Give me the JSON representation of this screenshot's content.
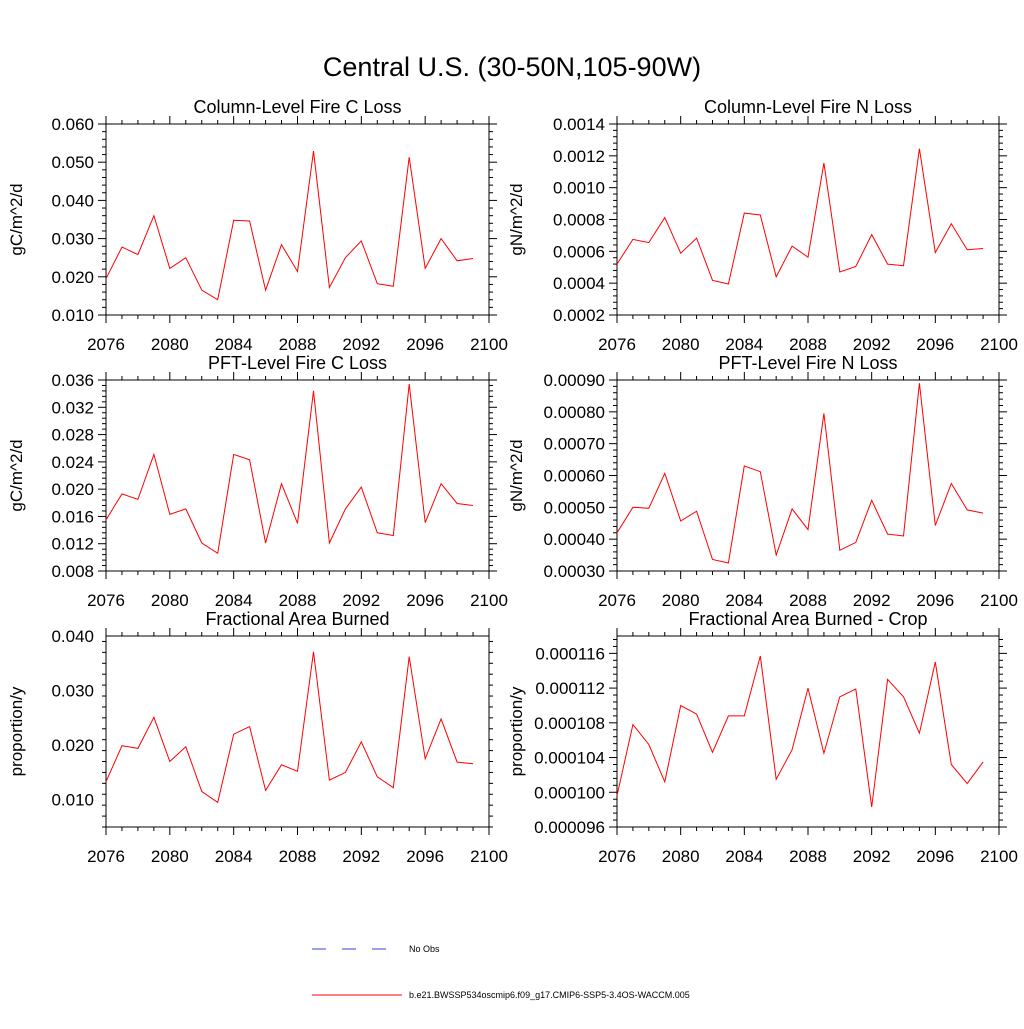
{
  "title": "Central U.S. (30-50N,105-90W)",
  "colors": {
    "model_line": "#ff0000",
    "obs_line": "#3344cc",
    "axis": "#000000"
  },
  "legend": {
    "obs_label": "No Obs",
    "model_label": "b.e21.BWSSP534oscmip6.f09_g17.CMIP6-SSP5-3.4OS-WACCM.005"
  },
  "chart_data": [
    {
      "type": "line",
      "title": "Column-Level Fire C Loss",
      "ylabel": "gC/m^2/d",
      "xlim": [
        2076,
        2100
      ],
      "ylim": [
        0.01,
        0.06
      ],
      "x_ticks": [
        "2076",
        "2080",
        "2084",
        "2088",
        "2092",
        "2096",
        "2100"
      ],
      "y_ticks": [
        "0.010",
        "0.020",
        "0.030",
        "0.040",
        "0.050",
        "0.060"
      ],
      "series": [
        {
          "name": "b.e21.BWSSP534oscmip6.f09_g17.CMIP6-SSP5-3.4OS-WACCM.005",
          "x": [
            2076,
            2077,
            2078,
            2079,
            2080,
            2081,
            2082,
            2083,
            2084,
            2085,
            2086,
            2087,
            2088,
            2089,
            2090,
            2091,
            2092,
            2093,
            2094,
            2095,
            2096,
            2097,
            2098,
            2099
          ],
          "y": [
            0.0195,
            0.0278,
            0.0258,
            0.036,
            0.0222,
            0.025,
            0.0165,
            0.014,
            0.0348,
            0.0346,
            0.0165,
            0.0284,
            0.0214,
            0.0529,
            0.0172,
            0.025,
            0.0294,
            0.0182,
            0.0175,
            0.0513,
            0.0222,
            0.03,
            0.0242,
            0.0248
          ]
        }
      ]
    },
    {
      "type": "line",
      "title": "Column-Level Fire N Loss",
      "ylabel": "gN/m^2/d",
      "xlim": [
        2076,
        2100
      ],
      "ylim": [
        0.0002,
        0.0014
      ],
      "x_ticks": [
        "2076",
        "2080",
        "2084",
        "2088",
        "2092",
        "2096",
        "2100"
      ],
      "y_ticks": [
        "0.0002",
        "0.0004",
        "0.0006",
        "0.0008",
        "0.0010",
        "0.0012",
        "0.0014"
      ],
      "series": [
        {
          "name": "b.e21.BWSSP534oscmip6.f09_g17.CMIP6-SSP5-3.4OS-WACCM.005",
          "x": [
            2076,
            2077,
            2078,
            2079,
            2080,
            2081,
            2082,
            2083,
            2084,
            2085,
            2086,
            2087,
            2088,
            2089,
            2090,
            2091,
            2092,
            2093,
            2094,
            2095,
            2096,
            2097,
            2098,
            2099
          ],
          "y": [
            0.00052,
            0.000675,
            0.000655,
            0.000812,
            0.000588,
            0.000683,
            0.000418,
            0.000395,
            0.00084,
            0.000828,
            0.00044,
            0.000633,
            0.000563,
            0.001155,
            0.00047,
            0.000505,
            0.000705,
            0.00052,
            0.00051,
            0.001245,
            0.000592,
            0.000773,
            0.00061,
            0.000618
          ]
        }
      ]
    },
    {
      "type": "line",
      "title": "PFT-Level Fire C Loss",
      "ylabel": "gC/m^2/d",
      "xlim": [
        2076,
        2100
      ],
      "ylim": [
        0.008,
        0.036
      ],
      "x_ticks": [
        "2076",
        "2080",
        "2084",
        "2088",
        "2092",
        "2096",
        "2100"
      ],
      "y_ticks": [
        "0.008",
        "0.012",
        "0.016",
        "0.020",
        "0.024",
        "0.028",
        "0.032",
        "0.036"
      ],
      "series": [
        {
          "name": "b.e21.BWSSP534oscmip6.f09_g17.CMIP6-SSP5-3.4OS-WACCM.005",
          "x": [
            2076,
            2077,
            2078,
            2079,
            2080,
            2081,
            2082,
            2083,
            2084,
            2085,
            2086,
            2087,
            2088,
            2089,
            2090,
            2091,
            2092,
            2093,
            2094,
            2095,
            2096,
            2097,
            2098,
            2099
          ],
          "y": [
            0.0155,
            0.0193,
            0.0185,
            0.0251,
            0.0163,
            0.0171,
            0.0121,
            0.0106,
            0.0251,
            0.0243,
            0.0121,
            0.0208,
            0.015,
            0.0344,
            0.0121,
            0.0171,
            0.0203,
            0.0136,
            0.0132,
            0.0354,
            0.0151,
            0.0208,
            0.0179,
            0.0176
          ]
        }
      ]
    },
    {
      "type": "line",
      "title": "PFT-Level Fire N Loss",
      "ylabel": "gN/m^2/d",
      "xlim": [
        2076,
        2100
      ],
      "ylim": [
        0.0003,
        0.0009
      ],
      "x_ticks": [
        "2076",
        "2080",
        "2084",
        "2088",
        "2092",
        "2096",
        "2100"
      ],
      "y_ticks": [
        "0.00030",
        "0.00040",
        "0.00050",
        "0.00060",
        "0.00070",
        "0.00080",
        "0.00090"
      ],
      "series": [
        {
          "name": "b.e21.BWSSP534oscmip6.f09_g17.CMIP6-SSP5-3.4OS-WACCM.005",
          "x": [
            2076,
            2077,
            2078,
            2079,
            2080,
            2081,
            2082,
            2083,
            2084,
            2085,
            2086,
            2087,
            2088,
            2089,
            2090,
            2091,
            2092,
            2093,
            2094,
            2095,
            2096,
            2097,
            2098,
            2099
          ],
          "y": [
            0.00042,
            0.0005,
            0.000497,
            0.000607,
            0.000457,
            0.000488,
            0.000336,
            0.000325,
            0.00063,
            0.000612,
            0.00035,
            0.000495,
            0.00043,
            0.000795,
            0.000365,
            0.00039,
            0.000522,
            0.000416,
            0.00041,
            0.00089,
            0.000443,
            0.000575,
            0.000492,
            0.000482
          ]
        }
      ]
    },
    {
      "type": "line",
      "title": "Fractional Area Burned",
      "ylabel": "proportion/y",
      "xlim": [
        2076,
        2100
      ],
      "ylim": [
        0.005,
        0.04
      ],
      "x_ticks": [
        "2076",
        "2080",
        "2084",
        "2088",
        "2092",
        "2096",
        "2100"
      ],
      "y_ticks": [
        "0.010",
        "0.020",
        "0.030",
        "0.040"
      ],
      "y_tick_values": [
        0.01,
        0.02,
        0.03,
        0.04
      ],
      "series": [
        {
          "name": "b.e21.BWSSP534oscmip6.f09_g17.CMIP6-SSP5-3.4OS-WACCM.005",
          "x": [
            2076,
            2077,
            2078,
            2079,
            2080,
            2081,
            2082,
            2083,
            2084,
            2085,
            2086,
            2087,
            2088,
            2089,
            2090,
            2091,
            2092,
            2093,
            2094,
            2095,
            2096,
            2097,
            2098,
            2099
          ],
          "y": [
            0.0133,
            0.0199,
            0.0194,
            0.0251,
            0.017,
            0.0197,
            0.0115,
            0.0095,
            0.022,
            0.0234,
            0.0117,
            0.0164,
            0.0152,
            0.0371,
            0.0136,
            0.015,
            0.0206,
            0.0142,
            0.0122,
            0.0362,
            0.0175,
            0.0248,
            0.0169,
            0.0166
          ]
        }
      ]
    },
    {
      "type": "line",
      "title": "Fractional Area Burned - Crop",
      "ylabel": "proportion/y",
      "xlim": [
        2076,
        2100
      ],
      "ylim": [
        9.6e-05,
        0.000118
      ],
      "x_ticks": [
        "2076",
        "2080",
        "2084",
        "2088",
        "2092",
        "2096",
        "2100"
      ],
      "y_ticks": [
        "0.000096",
        "0.000100",
        "0.000104",
        "0.000108",
        "0.000112",
        "0.000116"
      ],
      "series": [
        {
          "name": "b.e21.BWSSP534oscmip6.f09_g17.CMIP6-SSP5-3.4OS-WACCM.005",
          "x": [
            2076,
            2077,
            2078,
            2079,
            2080,
            2081,
            2082,
            2083,
            2084,
            2085,
            2086,
            2087,
            2088,
            2089,
            2090,
            2091,
            2092,
            2093,
            2094,
            2095,
            2096,
            2097,
            2098,
            2099
          ],
          "y": [
            9.96e-05,
            0.0001078,
            0.0001055,
            0.0001012,
            0.00011,
            0.000109,
            0.0001046,
            0.0001088,
            0.0001088,
            0.0001157,
            0.0001015,
            0.0001049,
            0.000112,
            0.0001045,
            0.000111,
            0.0001119,
            9.83e-05,
            0.000113,
            0.000111,
            0.0001068,
            0.000115,
            0.0001032,
            0.000101,
            0.0001035
          ]
        }
      ]
    }
  ]
}
